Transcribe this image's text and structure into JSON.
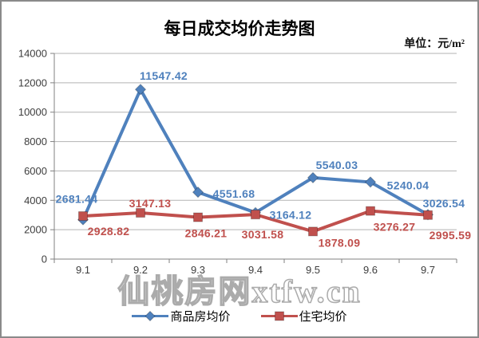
{
  "unit_label": "单位：元/m²",
  "watermark": {
    "text": "仙桃房网xtfw.cn"
  },
  "chart_data": {
    "type": "line",
    "title": "每日成交均价走势图",
    "unit": "元/m²",
    "categories": [
      "9.1",
      "9.2",
      "9.3",
      "9.4",
      "9.5",
      "9.6",
      "9.7"
    ],
    "series": [
      {
        "name": "商品房均价",
        "color": "#4F81BD",
        "marker": "diamond",
        "values": [
          2681.44,
          11547.42,
          4551.68,
          3164.12,
          5540.03,
          5240.04,
          3026.54
        ],
        "label_offsets": [
          [
            -8,
            -21
          ],
          [
            29,
            -12
          ],
          [
            45,
            7
          ],
          [
            44,
            8
          ],
          [
            30,
            -11
          ],
          [
            47,
            9
          ],
          [
            20,
            -9
          ]
        ]
      },
      {
        "name": "住宅均价",
        "color": "#C0504D",
        "marker": "square",
        "values": [
          2928.82,
          3147.13,
          2846.21,
          3031.58,
          1878.09,
          3276.27,
          2995.59
        ],
        "label_offsets": [
          [
            32,
            24
          ],
          [
            12,
            -7
          ],
          [
            10,
            25
          ],
          [
            9,
            30
          ],
          [
            33,
            19
          ],
          [
            30,
            25
          ],
          [
            28,
            30
          ]
        ]
      }
    ],
    "xlabel": "",
    "ylabel": "",
    "ylim": [
      0,
      14000
    ],
    "ytick": 2000,
    "grid": true,
    "legend_position": "bottom",
    "colors": {
      "gridline": "#b3b3b3",
      "axis": "#808080",
      "tick_label": "#3d3d3d"
    }
  }
}
